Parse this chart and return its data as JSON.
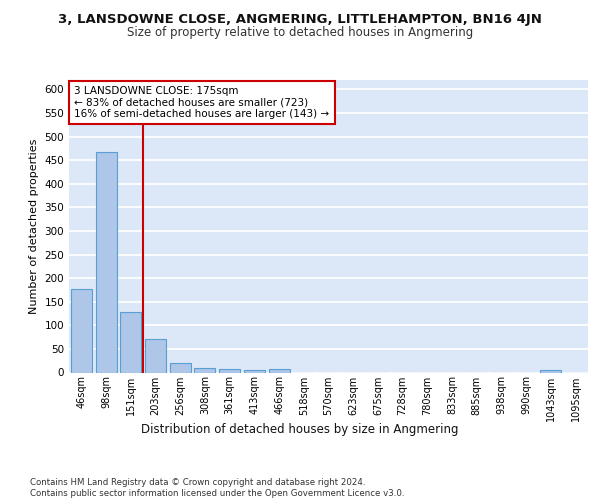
{
  "title": "3, LANSDOWNE CLOSE, ANGMERING, LITTLEHAMPTON, BN16 4JN",
  "subtitle": "Size of property relative to detached houses in Angmering",
  "xlabel": "Distribution of detached houses by size in Angmering",
  "ylabel": "Number of detached properties",
  "bin_labels": [
    "46sqm",
    "98sqm",
    "151sqm",
    "203sqm",
    "256sqm",
    "308sqm",
    "361sqm",
    "413sqm",
    "466sqm",
    "518sqm",
    "570sqm",
    "623sqm",
    "675sqm",
    "728sqm",
    "780sqm",
    "833sqm",
    "885sqm",
    "938sqm",
    "990sqm",
    "1043sqm",
    "1095sqm"
  ],
  "bin_values": [
    178,
    468,
    128,
    70,
    20,
    10,
    8,
    6,
    7,
    0,
    0,
    0,
    0,
    0,
    0,
    0,
    0,
    0,
    0,
    6,
    0
  ],
  "bar_color": "#aec6e8",
  "bar_edge_color": "#5a9fd4",
  "vline_x": 2.5,
  "vline_color": "#cc0000",
  "annotation_text": "3 LANSDOWNE CLOSE: 175sqm\n← 83% of detached houses are smaller (723)\n16% of semi-detached houses are larger (143) →",
  "annotation_box_color": "#ffffff",
  "annotation_box_edge": "#cc0000",
  "bg_color": "#dce8f8",
  "grid_color": "#ffffff",
  "footer_text": "Contains HM Land Registry data © Crown copyright and database right 2024.\nContains public sector information licensed under the Open Government Licence v3.0.",
  "ylim": [
    0,
    620
  ],
  "yticks": [
    0,
    50,
    100,
    150,
    200,
    250,
    300,
    350,
    400,
    450,
    500,
    550,
    600
  ]
}
